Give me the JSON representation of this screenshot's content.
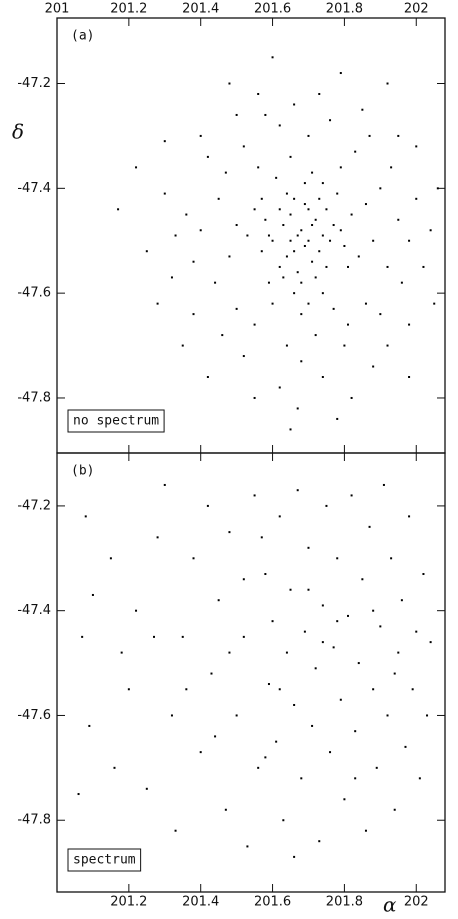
{
  "chart_data": [
    {
      "type": "scatter",
      "panel_label": "(a)",
      "annotation": "no spectrum",
      "ylabel": "δ",
      "color": "#000000",
      "xlim": [
        201,
        202.08
      ],
      "ylim": [
        -47.905,
        -47.075
      ],
      "xticks": [
        201,
        201.2,
        201.4,
        201.6,
        201.8,
        202
      ],
      "yticks": [
        -47.2,
        -47.4,
        -47.6,
        -47.8
      ],
      "xaxis_position": "top",
      "x": [
        201.68,
        201.7,
        201.65,
        201.72,
        201.66,
        201.74,
        201.63,
        201.69,
        201.71,
        201.6,
        201.77,
        201.67,
        201.64,
        201.73,
        201.58,
        201.8,
        201.62,
        201.75,
        201.69,
        201.57,
        201.82,
        201.55,
        201.66,
        201.71,
        201.78,
        201.61,
        201.84,
        201.53,
        201.74,
        201.59,
        201.86,
        201.5,
        201.68,
        201.65,
        201.79,
        201.56,
        201.88,
        201.48,
        201.77,
        201.6,
        201.9,
        201.45,
        201.72,
        201.7,
        201.83,
        201.52,
        201.92,
        201.44,
        201.81,
        201.55,
        201.95,
        201.4,
        201.64,
        201.62,
        201.87,
        201.47,
        201.96,
        201.38,
        201.86,
        201.5,
        201.93,
        201.42,
        201.68,
        201.76,
        201.98,
        201.36,
        201.9,
        201.46,
        201.58,
        201.8,
        202.0,
        201.33,
        201.74,
        201.66,
        201.95,
        201.4,
        202.02,
        201.32,
        201.92,
        201.52,
        201.5,
        201.85,
        202.04,
        201.3,
        201.62,
        201.98,
        201.38,
        201.73,
        201.56,
        201.88,
        201.78,
        201.65,
        201.6,
        201.79,
        201.92,
        201.48,
        201.22,
        201.17,
        201.25,
        202.06,
        202.05,
        201.28,
        201.35,
        201.98,
        201.42,
        201.82,
        201.67,
        201.55,
        201.3,
        202.0,
        201.69,
        201.71,
        201.67,
        201.73,
        201.65,
        201.7,
        201.64,
        201.76,
        201.62,
        201.72,
        201.66,
        201.79,
        201.59,
        201.68,
        201.75,
        201.63,
        201.81,
        201.57,
        201.7,
        201.74
      ],
      "y": [
        -47.48,
        -47.5,
        -47.45,
        -47.46,
        -47.52,
        -47.49,
        -47.47,
        -47.43,
        -47.54,
        -47.5,
        -47.47,
        -47.56,
        -47.41,
        -47.42,
        -47.46,
        -47.51,
        -47.55,
        -47.55,
        -47.39,
        -47.52,
        -47.45,
        -47.44,
        -47.6,
        -47.37,
        -47.41,
        -47.38,
        -47.53,
        -47.49,
        -47.6,
        -47.58,
        -47.43,
        -47.47,
        -47.64,
        -47.34,
        -47.36,
        -47.36,
        -47.5,
        -47.53,
        -47.63,
        -47.62,
        -47.4,
        -47.42,
        -47.68,
        -47.3,
        -47.33,
        -47.32,
        -47.55,
        -47.58,
        -47.66,
        -47.66,
        -47.46,
        -47.48,
        -47.7,
        -47.28,
        -47.3,
        -47.37,
        -47.58,
        -47.54,
        -47.62,
        -47.63,
        -47.36,
        -47.34,
        -47.73,
        -47.27,
        -47.5,
        -47.45,
        -47.64,
        -47.68,
        -47.26,
        -47.7,
        -47.42,
        -47.49,
        -47.76,
        -47.24,
        -47.3,
        -47.3,
        -47.55,
        -47.57,
        -47.7,
        -47.72,
        -47.26,
        -47.25,
        -47.48,
        -47.41,
        -47.78,
        -47.66,
        -47.64,
        -47.22,
        -47.22,
        -47.74,
        -47.84,
        -47.86,
        -47.15,
        -47.18,
        -47.2,
        -47.2,
        -47.36,
        -47.44,
        -47.52,
        -47.4,
        -47.62,
        -47.62,
        -47.7,
        -47.76,
        -47.76,
        -47.8,
        -47.82,
        -47.8,
        -47.31,
        -47.32,
        -47.51,
        -47.47,
        -47.49,
        -47.52,
        -47.5,
        -47.44,
        -47.53,
        -47.5,
        -47.44,
        -47.57,
        -47.42,
        -47.48,
        -47.49,
        -47.58,
        -47.44,
        -47.57,
        -47.55,
        -47.42,
        -47.62,
        -47.39
      ]
    },
    {
      "type": "scatter",
      "panel_label": "(b)",
      "annotation": "spectrum",
      "xlabel": "α",
      "color": "#000000",
      "xlim": [
        201,
        202.08
      ],
      "ylim": [
        -47.937,
        -47.099
      ],
      "xticks": [
        201.2,
        201.4,
        201.6,
        201.8,
        202
      ],
      "yticks": [
        -47.2,
        -47.4,
        -47.6,
        -47.8
      ],
      "xaxis_position": "bottom",
      "x": [
        201.08,
        201.1,
        201.07,
        201.09,
        201.06,
        201.15,
        201.18,
        201.16,
        201.2,
        201.22,
        201.25,
        201.28,
        201.3,
        201.32,
        201.33,
        201.35,
        201.38,
        201.4,
        201.42,
        201.43,
        201.45,
        201.47,
        201.48,
        201.5,
        201.52,
        201.53,
        201.55,
        201.56,
        201.58,
        201.59,
        201.6,
        201.61,
        201.62,
        201.63,
        201.64,
        201.65,
        201.66,
        201.67,
        201.68,
        201.69,
        201.7,
        201.71,
        201.72,
        201.73,
        201.74,
        201.75,
        201.76,
        201.77,
        201.78,
        201.79,
        201.8,
        201.81,
        201.82,
        201.83,
        201.84,
        201.85,
        201.86,
        201.87,
        201.88,
        201.89,
        201.9,
        201.91,
        201.92,
        201.93,
        201.94,
        201.95,
        201.96,
        201.97,
        201.98,
        201.99,
        202.0,
        202.01,
        202.02,
        202.03,
        202.04,
        201.44,
        201.57,
        201.66,
        201.74,
        201.52,
        201.36,
        201.27,
        201.62,
        201.78,
        201.88,
        201.94,
        201.7,
        201.48,
        201.58,
        201.83
      ],
      "y": [
        -47.22,
        -47.37,
        -47.45,
        -47.62,
        -47.75,
        -47.3,
        -47.48,
        -47.7,
        -47.55,
        -47.4,
        -47.74,
        -47.26,
        -47.16,
        -47.6,
        -47.82,
        -47.45,
        -47.3,
        -47.67,
        -47.2,
        -47.52,
        -47.38,
        -47.78,
        -47.25,
        -47.6,
        -47.45,
        -47.85,
        -47.18,
        -47.7,
        -47.33,
        -47.54,
        -47.42,
        -47.65,
        -47.22,
        -47.8,
        -47.48,
        -47.36,
        -47.58,
        -47.17,
        -47.72,
        -47.44,
        -47.28,
        -47.62,
        -47.51,
        -47.84,
        -47.39,
        -47.2,
        -47.67,
        -47.47,
        -47.3,
        -47.57,
        -47.76,
        -47.41,
        -47.18,
        -47.63,
        -47.5,
        -47.34,
        -47.82,
        -47.24,
        -47.55,
        -47.7,
        -47.43,
        -47.16,
        -47.6,
        -47.3,
        -47.78,
        -47.48,
        -47.38,
        -47.66,
        -47.22,
        -47.55,
        -47.44,
        -47.72,
        -47.33,
        -47.6,
        -47.46,
        -47.64,
        -47.26,
        -47.87,
        -47.46,
        -47.34,
        -47.55,
        -47.45,
        -47.55,
        -47.42,
        -47.4,
        -47.52,
        -47.36,
        -47.48,
        -47.68,
        -47.72
      ]
    }
  ]
}
